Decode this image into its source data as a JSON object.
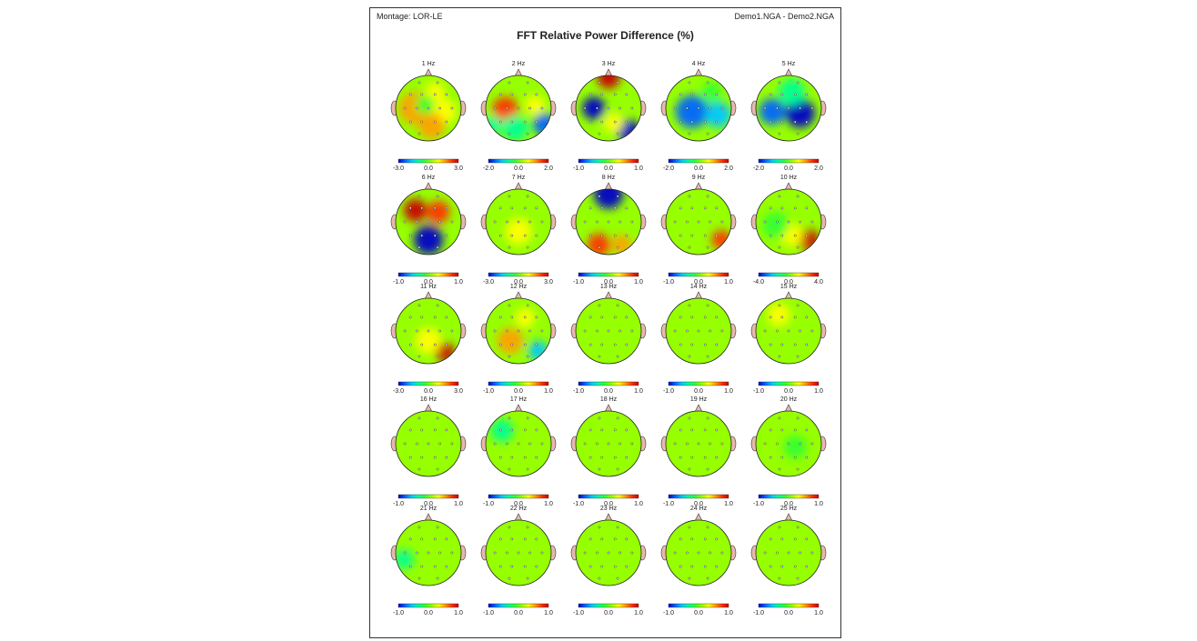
{
  "header": {
    "montage": "Montage:  LOR-LE",
    "files": "Demo1.NGA - Demo2.NGA"
  },
  "chart_data": {
    "type": "heatmap",
    "title": "FFT Relative Power Difference  (%)",
    "colormap": [
      "#0000c8",
      "#0064ff",
      "#00c8ff",
      "#00ff96",
      "#32ff32",
      "#96ff00",
      "#ffff00",
      "#ffa000",
      "#ff3200",
      "#c80000"
    ],
    "maps": [
      {
        "label": "1 Hz",
        "ticks": [
          "-3.0",
          "0.0",
          "3.0"
        ],
        "scale": 3,
        "blobs": [
          {
            "x": -0.4,
            "y": 0.0,
            "v": 1.5,
            "r": 0.5
          },
          {
            "x": 0.45,
            "y": 0.1,
            "v": 1.2,
            "r": 0.4
          },
          {
            "x": 0.1,
            "y": 0.55,
            "v": 1.5,
            "r": 0.4
          },
          {
            "x": 0.2,
            "y": -0.5,
            "v": 0.8,
            "r": 0.3
          },
          {
            "x": -0.1,
            "y": -0.1,
            "v": -0.2,
            "r": 0.3
          }
        ]
      },
      {
        "label": "2 Hz",
        "ticks": [
          "-2.0",
          "0.0",
          "2.0"
        ],
        "scale": 2,
        "blobs": [
          {
            "x": -0.4,
            "y": 0.05,
            "v": 1.6,
            "r": 0.4
          },
          {
            "x": 0.5,
            "y": -0.1,
            "v": 0.8,
            "r": 0.3
          },
          {
            "x": -0.1,
            "y": 0.6,
            "v": -0.8,
            "r": 0.4
          },
          {
            "x": 0.8,
            "y": 0.5,
            "v": -1.4,
            "r": 0.35
          },
          {
            "x": -0.8,
            "y": 0.5,
            "v": -0.8,
            "r": 0.3
          }
        ]
      },
      {
        "label": "3 Hz",
        "ticks": [
          "-1.0",
          "0.0",
          "1.0"
        ],
        "scale": 1,
        "blobs": [
          {
            "x": 0.0,
            "y": -0.95,
            "v": 1.1,
            "r": 0.35
          },
          {
            "x": -0.45,
            "y": 0.0,
            "v": -0.9,
            "r": 0.35
          },
          {
            "x": 0.6,
            "y": 0.7,
            "v": -1.1,
            "r": 0.35
          },
          {
            "x": 0.15,
            "y": 0.45,
            "v": 0.4,
            "r": 0.3
          }
        ]
      },
      {
        "label": "4 Hz",
        "ticks": [
          "-2.0",
          "0.0",
          "2.0"
        ],
        "scale": 2,
        "blobs": [
          {
            "x": -0.2,
            "y": 0.1,
            "v": -1.4,
            "r": 0.5
          },
          {
            "x": 0.6,
            "y": 0.2,
            "v": -0.9,
            "r": 0.4
          },
          {
            "x": 0.4,
            "y": -0.5,
            "v": -0.4,
            "r": 0.3
          }
        ]
      },
      {
        "label": "5 Hz",
        "ticks": [
          "-2.0",
          "0.0",
          "2.0"
        ],
        "scale": 2,
        "blobs": [
          {
            "x": 0.35,
            "y": 0.15,
            "v": -2.2,
            "r": 0.45
          },
          {
            "x": -0.5,
            "y": 0.1,
            "v": -1.6,
            "r": 0.4
          },
          {
            "x": 0.1,
            "y": -0.5,
            "v": -0.8,
            "r": 0.4
          }
        ]
      },
      {
        "label": "6 Hz",
        "ticks": [
          "-1.0",
          "0.0",
          "1.0"
        ],
        "scale": 1,
        "blobs": [
          {
            "x": -0.4,
            "y": -0.35,
            "v": 1.1,
            "r": 0.35
          },
          {
            "x": 0.3,
            "y": -0.3,
            "v": 0.7,
            "r": 0.35
          },
          {
            "x": 0.0,
            "y": 0.55,
            "v": -1.1,
            "r": 0.45
          }
        ]
      },
      {
        "label": "7 Hz",
        "ticks": [
          "-3.0",
          "0.0",
          "3.0"
        ],
        "scale": 3,
        "blobs": [
          {
            "x": 0.0,
            "y": 0.3,
            "v": 0.8,
            "r": 0.4
          },
          {
            "x": 0.3,
            "y": -0.3,
            "v": 0.5,
            "r": 0.3
          }
        ]
      },
      {
        "label": "8 Hz",
        "ticks": [
          "-1.0",
          "0.0",
          "1.0"
        ],
        "scale": 1,
        "blobs": [
          {
            "x": 0.0,
            "y": -0.85,
            "v": -1.2,
            "r": 0.45
          },
          {
            "x": -0.3,
            "y": 0.7,
            "v": 0.7,
            "r": 0.35
          },
          {
            "x": 0.4,
            "y": 0.7,
            "v": 0.5,
            "r": 0.3
          }
        ]
      },
      {
        "label": "9 Hz",
        "ticks": [
          "-1.0",
          "0.0",
          "1.0"
        ],
        "scale": 1,
        "blobs": [
          {
            "x": 0.7,
            "y": 0.55,
            "v": 0.8,
            "r": 0.3
          },
          {
            "x": -0.3,
            "y": 0.0,
            "v": 0.2,
            "r": 0.3
          }
        ]
      },
      {
        "label": "10 Hz",
        "ticks": [
          "-4.0",
          "0.0",
          "4.0"
        ],
        "scale": 4,
        "blobs": [
          {
            "x": 0.6,
            "y": 0.55,
            "v": 4.0,
            "r": 0.32
          },
          {
            "x": 0.1,
            "y": 0.4,
            "v": 1.0,
            "r": 0.35
          },
          {
            "x": -0.4,
            "y": 0.1,
            "v": -0.6,
            "r": 0.4
          }
        ]
      },
      {
        "label": "11 Hz",
        "ticks": [
          "-3.0",
          "0.0",
          "3.0"
        ],
        "scale": 3,
        "blobs": [
          {
            "x": 0.5,
            "y": 0.65,
            "v": 3.0,
            "r": 0.3
          },
          {
            "x": 0.0,
            "y": 0.3,
            "v": 1.0,
            "r": 0.4
          }
        ]
      },
      {
        "label": "12 Hz",
        "ticks": [
          "-1.0",
          "0.0",
          "1.0"
        ],
        "scale": 1,
        "blobs": [
          {
            "x": -0.25,
            "y": 0.3,
            "v": 0.6,
            "r": 0.4
          },
          {
            "x": 0.6,
            "y": 0.6,
            "v": -0.6,
            "r": 0.3
          },
          {
            "x": 0.2,
            "y": -0.4,
            "v": 0.3,
            "r": 0.3
          }
        ]
      },
      {
        "label": "13 Hz",
        "ticks": [
          "-1.0",
          "0.0",
          "1.0"
        ],
        "scale": 1,
        "blobs": [
          {
            "x": -0.3,
            "y": 0.2,
            "v": 0.1,
            "r": 0.4
          }
        ]
      },
      {
        "label": "14 Hz",
        "ticks": [
          "-1.0",
          "0.0",
          "1.0"
        ],
        "scale": 1,
        "blobs": [
          {
            "x": 0.2,
            "y": 0.2,
            "v": 0.1,
            "r": 0.4
          }
        ]
      },
      {
        "label": "15 Hz",
        "ticks": [
          "-1.0",
          "0.0",
          "1.0"
        ],
        "scale": 1,
        "blobs": [
          {
            "x": -0.3,
            "y": -0.5,
            "v": 0.3,
            "r": 0.35
          }
        ]
      },
      {
        "label": "16 Hz",
        "ticks": [
          "-1.0",
          "0.0",
          "1.0"
        ],
        "scale": 1,
        "blobs": [
          {
            "x": 0.0,
            "y": 0.0,
            "v": 0.05,
            "r": 0.4
          }
        ]
      },
      {
        "label": "17 Hz",
        "ticks": [
          "-1.0",
          "0.0",
          "1.0"
        ],
        "scale": 1,
        "blobs": [
          {
            "x": -0.5,
            "y": -0.4,
            "v": -0.25,
            "r": 0.35
          }
        ]
      },
      {
        "label": "18 Hz",
        "ticks": [
          "-1.0",
          "0.0",
          "1.0"
        ],
        "scale": 1,
        "blobs": [
          {
            "x": 0.0,
            "y": 0.0,
            "v": 0.05,
            "r": 0.4
          }
        ]
      },
      {
        "label": "19 Hz",
        "ticks": [
          "-1.0",
          "0.0",
          "1.0"
        ],
        "scale": 1,
        "blobs": [
          {
            "x": 0.6,
            "y": 0.0,
            "v": 0.15,
            "r": 0.3
          }
        ]
      },
      {
        "label": "20 Hz",
        "ticks": [
          "-1.0",
          "0.0",
          "1.0"
        ],
        "scale": 1,
        "blobs": [
          {
            "x": 0.2,
            "y": 0.1,
            "v": -0.15,
            "r": 0.35
          }
        ]
      },
      {
        "label": "21 Hz",
        "ticks": [
          "-1.0",
          "0.0",
          "1.0"
        ],
        "scale": 1,
        "blobs": [
          {
            "x": -0.75,
            "y": 0.2,
            "v": -0.25,
            "r": 0.3
          }
        ]
      },
      {
        "label": "22 Hz",
        "ticks": [
          "-1.0",
          "0.0",
          "1.0"
        ],
        "scale": 1,
        "blobs": [
          {
            "x": 0.0,
            "y": 0.0,
            "v": 0.05,
            "r": 0.4
          }
        ]
      },
      {
        "label": "23 Hz",
        "ticks": [
          "-1.0",
          "0.0",
          "1.0"
        ],
        "scale": 1,
        "blobs": [
          {
            "x": 0.0,
            "y": 0.0,
            "v": 0.0,
            "r": 0.4
          }
        ]
      },
      {
        "label": "24 Hz",
        "ticks": [
          "-1.0",
          "0.0",
          "1.0"
        ],
        "scale": 1,
        "blobs": [
          {
            "x": 0.0,
            "y": 0.0,
            "v": 0.05,
            "r": 0.4
          }
        ]
      },
      {
        "label": "25 Hz",
        "ticks": [
          "-1.0",
          "0.0",
          "1.0"
        ],
        "scale": 1,
        "blobs": [
          {
            "x": 0.0,
            "y": 0.0,
            "v": 0.0,
            "r": 0.4
          }
        ]
      }
    ]
  }
}
